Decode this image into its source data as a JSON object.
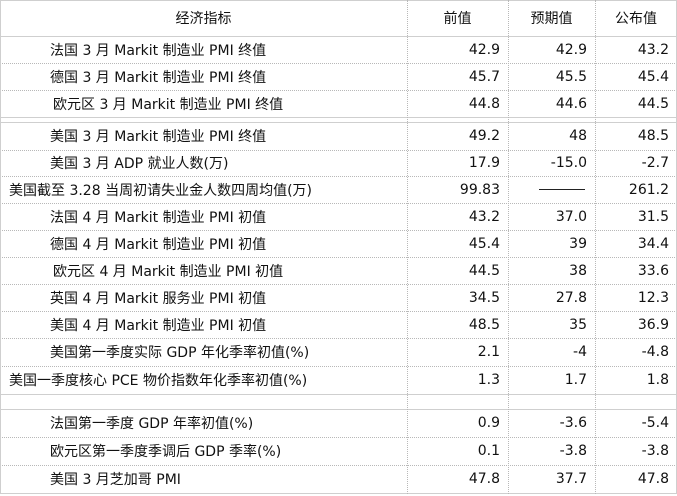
{
  "header": {
    "indicator": "经济指标",
    "previous": "前值",
    "expected": "预期值",
    "actual": "公布值"
  },
  "rows": [
    {
      "indicator": "法国 3 月 Markit 制造业 PMI 终值",
      "previous": "42.9",
      "expected": "42.9",
      "actual": "43.2"
    },
    {
      "indicator": "德国 3 月 Markit 制造业 PMI 终值",
      "previous": "45.7",
      "expected": "45.5",
      "actual": "45.4"
    },
    {
      "indicator": "欧元区 3 月 Markit 制造业 PMI 终值",
      "previous": "44.8",
      "expected": "44.6",
      "actual": "44.5"
    },
    {
      "indicator": "美国 3 月 Markit 制造业 PMI 终值",
      "previous": "49.2",
      "expected": "48",
      "actual": "48.5"
    },
    {
      "indicator": "美国 3 月 ADP 就业人数(万)",
      "previous": "17.9",
      "expected": "-15.0",
      "actual": "-2.7"
    },
    {
      "indicator": "美国截至 3.28 当周初请失业金人数四周均值(万)",
      "previous": "99.83",
      "expected": "",
      "actual": "261.2"
    },
    {
      "indicator": "法国 4 月 Markit 制造业 PMI 初值",
      "previous": "43.2",
      "expected": "37.0",
      "actual": "31.5"
    },
    {
      "indicator": "德国 4 月 Markit 制造业 PMI 初值",
      "previous": "45.4",
      "expected": "39",
      "actual": "34.4"
    },
    {
      "indicator": "欧元区 4 月 Markit 制造业 PMI 初值",
      "previous": "44.5",
      "expected": "38",
      "actual": "33.6"
    },
    {
      "indicator": "英国 4 月 Markit 服务业 PMI 初值",
      "previous": "34.5",
      "expected": "27.8",
      "actual": "12.3"
    },
    {
      "indicator": "美国 4 月 Markit 制造业 PMI 初值",
      "previous": "48.5",
      "expected": "35",
      "actual": "36.9"
    },
    {
      "indicator": "美国第一季度实际 GDP 年化季率初值(%)",
      "previous": "2.1",
      "expected": "-4",
      "actual": "-4.8"
    },
    {
      "indicator": "美国一季度核心 PCE 物价指数年化季率初值(%)",
      "previous": "1.3",
      "expected": "1.7",
      "actual": "1.8"
    },
    {
      "indicator": "法国第一季度 GDP 年率初值(%)",
      "previous": "0.9",
      "expected": "-3.6",
      "actual": "-5.4"
    },
    {
      "indicator": "欧元区第一季度季调后 GDP 季率(%)",
      "previous": "0.1",
      "expected": "-3.8",
      "actual": "-3.8"
    },
    {
      "indicator": "美国 3 月芝加哥 PMI",
      "previous": "47.8",
      "expected": "37.7",
      "actual": "47.8"
    }
  ]
}
